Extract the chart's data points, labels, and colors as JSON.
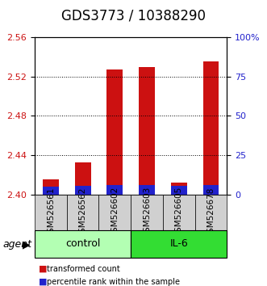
{
  "title": "GDS3773 / 10388290",
  "samples": [
    "GSM526561",
    "GSM526562",
    "GSM526602",
    "GSM526603",
    "GSM526605",
    "GSM526678"
  ],
  "red_values": [
    2.415,
    2.433,
    2.527,
    2.53,
    2.412,
    2.535
  ],
  "blue_values": [
    0.008,
    0.009,
    0.01,
    0.01,
    0.009,
    0.01
  ],
  "ymin": 2.4,
  "ymax": 2.56,
  "yticks_left": [
    2.4,
    2.44,
    2.48,
    2.52,
    2.56
  ],
  "yticks_right": [
    0,
    25,
    50,
    75,
    100
  ],
  "right_labels": [
    "0",
    "25",
    "50",
    "75",
    "100%"
  ],
  "groups": [
    {
      "label": "control",
      "samples": [
        "GSM526561",
        "GSM526562",
        "GSM526602"
      ],
      "color": "#b3ffb3"
    },
    {
      "label": "IL-6",
      "samples": [
        "GSM526603",
        "GSM526605",
        "GSM526678"
      ],
      "color": "#33dd33"
    }
  ],
  "bar_width": 0.5,
  "red_color": "#cc1111",
  "blue_color": "#2222cc",
  "grid_color": "#000000",
  "title_fontsize": 12,
  "axis_label_color_left": "#cc1111",
  "axis_label_color_right": "#2222cc",
  "sample_label_fontsize": 7.5,
  "group_label_fontsize": 9,
  "agent_label": "agent",
  "legend_items": [
    {
      "color": "#cc1111",
      "label": "transformed count"
    },
    {
      "color": "#2222cc",
      "label": "percentile rank within the sample"
    }
  ]
}
